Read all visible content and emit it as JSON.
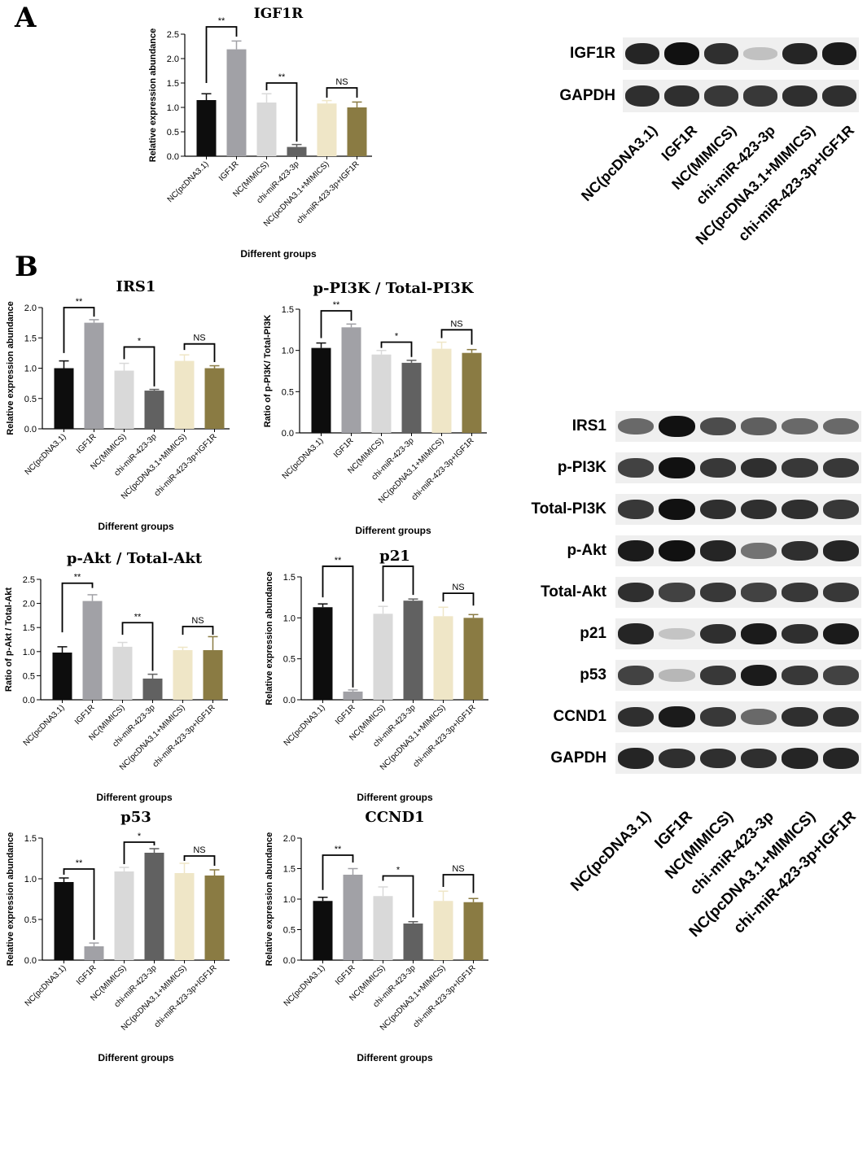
{
  "panels": {
    "a": "A",
    "b": "B"
  },
  "chart_data": [
    {
      "id": "igf1r",
      "type": "bar",
      "title": "IGF1R",
      "ylabel": "Relative expression abundance",
      "xlabel": "Different groups",
      "categories": [
        "NC(pcDNA3.1)",
        "IGF1R",
        "NC(MIMICS)",
        "chi-miR-423-3p",
        "NC(pcDNA3.1+MIMICS)",
        "chi-miR-423-3p+IGF1R"
      ],
      "values": [
        1.15,
        2.19,
        1.1,
        0.19,
        1.08,
        1.0
      ],
      "errors": [
        0.13,
        0.17,
        0.18,
        0.05,
        0.06,
        0.11
      ],
      "ylim": [
        0,
        2.5
      ],
      "yticks": [
        "0.0",
        "0.5",
        "1.0",
        "1.5",
        "2.0",
        "2.5"
      ],
      "significance": [
        {
          "from": 0,
          "to": 1,
          "label": "**",
          "y": 2.65,
          "left_tick": 1.5,
          "right_tick": 2.45
        },
        {
          "from": 2,
          "to": 3,
          "label": "**",
          "y": 1.5,
          "left_tick": 1.35,
          "right_tick": 0.3
        },
        {
          "from": 4,
          "to": 5,
          "label": "NS",
          "y": 1.4,
          "left_tick": 1.2,
          "right_tick": 1.2
        }
      ]
    },
    {
      "id": "irs1",
      "type": "bar",
      "title": "IRS1",
      "ylabel": "Relative expression abundance",
      "xlabel": "Different groups",
      "categories": [
        "NC(pcDNA3.1)",
        "IGF1R",
        "NC(MIMICS)",
        "chi-miR-423-3p",
        "NC(pcDNA3.1+MIMICS)",
        "chi-miR-423-3p+IGF1R"
      ],
      "values": [
        1.0,
        1.75,
        0.96,
        0.63,
        1.12,
        1.0
      ],
      "errors": [
        0.12,
        0.05,
        0.12,
        0.02,
        0.1,
        0.04
      ],
      "ylim": [
        0,
        2.0
      ],
      "yticks": [
        "0.0",
        "0.5",
        "1.0",
        "1.5",
        "2.0"
      ],
      "significance": [
        {
          "from": 0,
          "to": 1,
          "label": "**",
          "y": 2.0,
          "left_tick": 1.25,
          "right_tick": 1.85
        },
        {
          "from": 2,
          "to": 3,
          "label": "*",
          "y": 1.35,
          "left_tick": 1.15,
          "right_tick": 0.7
        },
        {
          "from": 4,
          "to": 5,
          "label": "NS",
          "y": 1.4,
          "left_tick": 1.3,
          "right_tick": 1.1
        }
      ]
    },
    {
      "id": "pi3k",
      "type": "bar",
      "title": "p-PI3K / Total-PI3K",
      "ylabel": "Ratio of p-PI3K/ Total-PI3K",
      "xlabel": "Different groups",
      "categories": [
        "NC(pcDNA3.1)",
        "IGF1R",
        "NC(MIMICS)",
        "chi-miR-423-3p",
        "NC(pcDNA3.1+MIMICS)",
        "chi-miR-423-3p+IGF1R"
      ],
      "values": [
        1.03,
        1.28,
        0.95,
        0.85,
        1.02,
        0.97
      ],
      "errors": [
        0.06,
        0.04,
        0.05,
        0.03,
        0.08,
        0.04
      ],
      "ylim": [
        0,
        1.5
      ],
      "yticks": [
        "0.0",
        "0.5",
        "1.0",
        "1.5"
      ],
      "significance": [
        {
          "from": 0,
          "to": 1,
          "label": "**",
          "y": 1.48,
          "left_tick": 1.15,
          "right_tick": 1.36
        },
        {
          "from": 2,
          "to": 3,
          "label": "*",
          "y": 1.1,
          "left_tick": 1.03,
          "right_tick": 0.92
        },
        {
          "from": 4,
          "to": 5,
          "label": "NS",
          "y": 1.25,
          "left_tick": 1.15,
          "right_tick": 1.07
        }
      ]
    },
    {
      "id": "akt",
      "type": "bar",
      "title": "p-Akt / Total-Akt",
      "ylabel": "Ratio of p-Akt / Total-Akt",
      "xlabel": "Different groups",
      "categories": [
        "NC(pcDNA3.1)",
        "IGF1R",
        "NC(MIMICS)",
        "chi-miR-423-3p",
        "NC(pcDNA3.1+MIMICS)",
        "chi-miR-423-3p+IGF1R"
      ],
      "values": [
        0.98,
        2.05,
        1.1,
        0.44,
        1.03,
        1.03
      ],
      "errors": [
        0.12,
        0.13,
        0.09,
        0.09,
        0.06,
        0.28
      ],
      "ylim": [
        0,
        2.5
      ],
      "yticks": [
        "0.0",
        "0.5",
        "1.0",
        "1.5",
        "2.0",
        "2.5"
      ],
      "significance": [
        {
          "from": 0,
          "to": 1,
          "label": "**",
          "y": 2.42,
          "left_tick": 1.4,
          "right_tick": 2.32
        },
        {
          "from": 2,
          "to": 3,
          "label": "**",
          "y": 1.6,
          "left_tick": 1.35,
          "right_tick": 0.6
        },
        {
          "from": 4,
          "to": 5,
          "label": "NS",
          "y": 1.52,
          "left_tick": 1.35,
          "right_tick": 1.35
        }
      ]
    },
    {
      "id": "p21",
      "type": "bar",
      "title": "p21",
      "ylabel": "Relative expression abundance",
      "xlabel": "Different groups",
      "categories": [
        "NC(pcDNA3.1)",
        "IGF1R",
        "NC(MIMICS)",
        "chi-miR-423-3p",
        "NC(pcDNA3.1+MIMICS)",
        "chi-miR-423-3p+IGF1R"
      ],
      "values": [
        1.13,
        0.1,
        1.05,
        1.21,
        1.02,
        1.0
      ],
      "errors": [
        0.04,
        0.02,
        0.09,
        0.02,
        0.11,
        0.04
      ],
      "ylim": [
        0,
        1.5
      ],
      "yticks": [
        "0.0",
        "0.5",
        "1.0",
        "1.5"
      ],
      "significance": [
        {
          "from": 0,
          "to": 1,
          "label": "**",
          "y": 1.63,
          "left_tick": 1.25,
          "right_tick": 0.15
        },
        {
          "from": 2,
          "to": 3,
          "label": "*",
          "y": 1.63,
          "left_tick": 1.2,
          "right_tick": 1.28
        },
        {
          "from": 4,
          "to": 5,
          "label": "NS",
          "y": 1.3,
          "left_tick": 1.2,
          "right_tick": 1.15
        }
      ]
    },
    {
      "id": "p53",
      "type": "bar",
      "title": "p53",
      "ylabel": "Relative expression abundance",
      "xlabel": "Different groups",
      "categories": [
        "NC(pcDNA3.1)",
        "IGF1R",
        "NC(MIMICS)",
        "chi-miR-423-3p",
        "NC(pcDNA3.1+MIMICS)",
        "chi-miR-423-3p+IGF1R"
      ],
      "values": [
        0.96,
        0.17,
        1.09,
        1.32,
        1.07,
        1.04
      ],
      "errors": [
        0.05,
        0.04,
        0.05,
        0.05,
        0.12,
        0.07
      ],
      "ylim": [
        0,
        1.5
      ],
      "yticks": [
        "0.0",
        "0.5",
        "1.0",
        "1.5"
      ],
      "significance": [
        {
          "from": 0,
          "to": 1,
          "label": "**",
          "y": 1.12,
          "left_tick": 1.05,
          "right_tick": 0.25
        },
        {
          "from": 2,
          "to": 3,
          "label": "*",
          "y": 1.45,
          "left_tick": 1.18,
          "right_tick": 1.41
        },
        {
          "from": 4,
          "to": 5,
          "label": "NS",
          "y": 1.28,
          "left_tick": 1.22,
          "right_tick": 1.16
        }
      ]
    },
    {
      "id": "ccnd1",
      "type": "bar",
      "title": "CCND1",
      "ylabel": "Relative expression abundance",
      "xlabel": "Different groups",
      "categories": [
        "NC(pcDNA3.1)",
        "IGF1R",
        "NC(MIMICS)",
        "chi-miR-423-3p",
        "NC(pcDNA3.1+MIMICS)",
        "chi-miR-423-3p+IGF1R"
      ],
      "values": [
        0.97,
        1.4,
        1.05,
        0.6,
        0.97,
        0.95
      ],
      "errors": [
        0.06,
        0.1,
        0.15,
        0.03,
        0.16,
        0.06
      ],
      "ylim": [
        0,
        2.0
      ],
      "yticks": [
        "0.0",
        "0.5",
        "1.0",
        "1.5",
        "2.0"
      ],
      "significance": [
        {
          "from": 0,
          "to": 1,
          "label": "**",
          "y": 1.72,
          "left_tick": 1.15,
          "right_tick": 1.6
        },
        {
          "from": 2,
          "to": 3,
          "label": "*",
          "y": 1.38,
          "left_tick": 1.3,
          "right_tick": 0.7
        },
        {
          "from": 4,
          "to": 5,
          "label": "NS",
          "y": 1.4,
          "left_tick": 1.2,
          "right_tick": 1.1
        }
      ]
    }
  ],
  "bar_colors": [
    "#0d0d0d",
    "#a1a1a6",
    "#d9d9d9",
    "#616161",
    "#efe6c7",
    "#8a7b43"
  ],
  "blots": {
    "top": {
      "proteins": [
        "IGF1R",
        "GAPDH"
      ],
      "lanes": [
        "NC(pcDNA3.1)",
        "IGF1R",
        "NC(MIMICS)",
        "chi-miR-423-3p",
        "NC(pcDNA3.1+MIMICS)",
        "chi-miR-423-3p+IGF1R"
      ],
      "intensity": [
        [
          0.9,
          1.0,
          0.85,
          0.1,
          0.9,
          0.95
        ],
        [
          0.85,
          0.85,
          0.8,
          0.8,
          0.85,
          0.85
        ]
      ]
    },
    "bottom": {
      "proteins": [
        "IRS1",
        "p-PI3K",
        "Total-PI3K",
        "p-Akt",
        "Total-Akt",
        "p21",
        "p53",
        "CCND1",
        "GAPDH"
      ],
      "lanes": [
        "NC(pcDNA3.1)",
        "IGF1R",
        "NC(MIMICS)",
        "chi-miR-423-3p",
        "NC(pcDNA3.1+MIMICS)",
        "chi-miR-423-3p+IGF1R"
      ],
      "intensity": [
        [
          0.55,
          1.0,
          0.7,
          0.6,
          0.55,
          0.55
        ],
        [
          0.75,
          1.0,
          0.8,
          0.85,
          0.8,
          0.8
        ],
        [
          0.8,
          1.0,
          0.85,
          0.85,
          0.85,
          0.8
        ],
        [
          0.95,
          1.0,
          0.9,
          0.5,
          0.85,
          0.9
        ],
        [
          0.85,
          0.75,
          0.8,
          0.75,
          0.8,
          0.8
        ],
        [
          0.9,
          0.08,
          0.85,
          0.95,
          0.85,
          0.95
        ],
        [
          0.75,
          0.15,
          0.8,
          0.95,
          0.8,
          0.75
        ],
        [
          0.85,
          0.95,
          0.8,
          0.55,
          0.85,
          0.85
        ],
        [
          0.9,
          0.85,
          0.85,
          0.85,
          0.9,
          0.9
        ]
      ]
    }
  }
}
